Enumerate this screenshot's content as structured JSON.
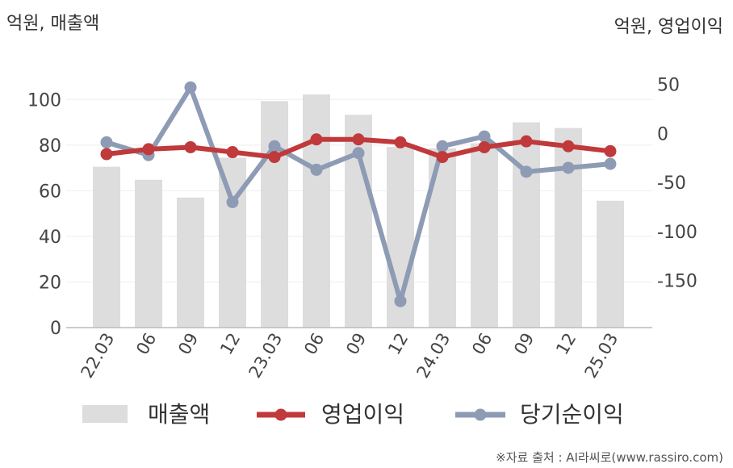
{
  "chart_data": {
    "type": "bar+line",
    "left_unit": "억원, 매출액",
    "right_unit": "억원, 영업이익",
    "categories": [
      "22.03",
      "06",
      "09",
      "12",
      "23.03",
      "06",
      "09",
      "12",
      "24.03",
      "06",
      "09",
      "12",
      "25.03"
    ],
    "bars": {
      "name": "매출액",
      "values": [
        70.5,
        64.8,
        57,
        74.5,
        99.3,
        102.2,
        93.3,
        79.2,
        78.6,
        80.8,
        90,
        87.5,
        55.6
      ],
      "color": "#dddddd"
    },
    "lines": [
      {
        "name": "영업이익",
        "values": [
          -21,
          -16,
          -14,
          -19,
          -24,
          -6,
          -6,
          -9,
          -24,
          -14,
          -8,
          -13,
          -18
        ],
        "color": "#c0393b"
      },
      {
        "name": "당기순이익",
        "values": [
          -9,
          -22,
          47,
          -70,
          -13,
          -37,
          -20,
          -171,
          -13,
          -3,
          -39,
          -35,
          -31
        ],
        "color": "#8e9bb5"
      }
    ],
    "left_axis": {
      "ylim": [
        0,
        110
      ],
      "ticks": [
        "0",
        "20",
        "40",
        "60",
        "80",
        "100"
      ]
    },
    "right_axis": {
      "ylim": [
        -198,
        58
      ],
      "ticks": [
        "50",
        "0",
        "-50",
        "-100",
        "-150"
      ]
    },
    "legend": [
      "매출액",
      "영업이익",
      "당기순이익"
    ],
    "legend_position": "bottom",
    "source": "※자료 출처 : AI라씨로(www.rassiro.com)"
  }
}
